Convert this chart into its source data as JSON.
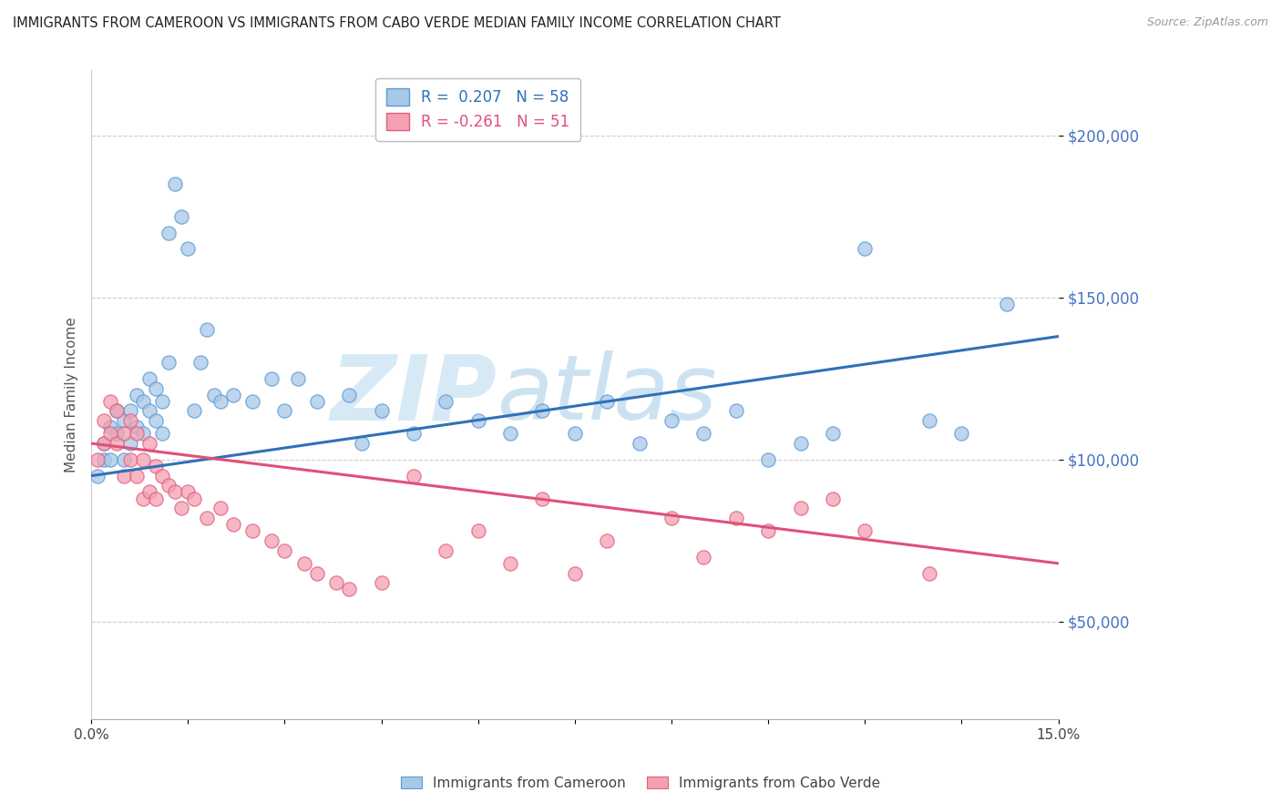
{
  "title": "IMMIGRANTS FROM CAMEROON VS IMMIGRANTS FROM CABO VERDE MEDIAN FAMILY INCOME CORRELATION CHART",
  "source": "Source: ZipAtlas.com",
  "ylabel": "Median Family Income",
  "xlim": [
    0.0,
    0.15
  ],
  "ylim": [
    20000,
    220000
  ],
  "yticks": [
    50000,
    100000,
    150000,
    200000
  ],
  "ytick_labels": [
    "$50,000",
    "$100,000",
    "$150,000",
    "$200,000"
  ],
  "xticks": [
    0.0,
    0.015,
    0.03,
    0.045,
    0.06,
    0.075,
    0.09,
    0.105,
    0.12,
    0.135,
    0.15
  ],
  "xtick_labels": [
    "0.0%",
    "",
    "",
    "",
    "",
    "",
    "",
    "",
    "",
    "",
    "15.0%"
  ],
  "series1_label": "Immigrants from Cameroon",
  "series2_label": "Immigrants from Cabo Verde",
  "series1_r": "0.207",
  "series1_n": "58",
  "series2_r": "-0.261",
  "series2_n": "51",
  "series1_color": "#a8c8e8",
  "series2_color": "#f4a0b0",
  "series1_edge_color": "#5b9bd5",
  "series2_edge_color": "#e06080",
  "series1_line_color": "#3070b8",
  "series2_line_color": "#e0507a",
  "background_color": "#ffffff",
  "grid_color": "#cccccc",
  "ytick_color": "#4472c4",
  "watermark_color": "#cce0f0",
  "series1_line_y0": 95000,
  "series1_line_y1": 138000,
  "series2_line_y0": 105000,
  "series2_line_y1": 68000,
  "series1_x": [
    0.001,
    0.002,
    0.002,
    0.003,
    0.003,
    0.004,
    0.004,
    0.005,
    0.005,
    0.006,
    0.006,
    0.007,
    0.007,
    0.008,
    0.008,
    0.009,
    0.009,
    0.01,
    0.01,
    0.011,
    0.011,
    0.012,
    0.012,
    0.013,
    0.014,
    0.015,
    0.016,
    0.017,
    0.018,
    0.019,
    0.02,
    0.022,
    0.025,
    0.028,
    0.03,
    0.032,
    0.035,
    0.04,
    0.042,
    0.045,
    0.05,
    0.055,
    0.06,
    0.065,
    0.07,
    0.075,
    0.08,
    0.085,
    0.09,
    0.095,
    0.1,
    0.105,
    0.11,
    0.115,
    0.12,
    0.13,
    0.135,
    0.142
  ],
  "series1_y": [
    95000,
    105000,
    100000,
    110000,
    100000,
    108000,
    115000,
    100000,
    112000,
    105000,
    115000,
    110000,
    120000,
    108000,
    118000,
    115000,
    125000,
    112000,
    122000,
    108000,
    118000,
    130000,
    170000,
    185000,
    175000,
    165000,
    115000,
    130000,
    140000,
    120000,
    118000,
    120000,
    118000,
    125000,
    115000,
    125000,
    118000,
    120000,
    105000,
    115000,
    108000,
    118000,
    112000,
    108000,
    115000,
    108000,
    118000,
    105000,
    112000,
    108000,
    115000,
    100000,
    105000,
    108000,
    165000,
    112000,
    108000,
    148000
  ],
  "series2_x": [
    0.001,
    0.002,
    0.002,
    0.003,
    0.003,
    0.004,
    0.004,
    0.005,
    0.005,
    0.006,
    0.006,
    0.007,
    0.007,
    0.008,
    0.008,
    0.009,
    0.009,
    0.01,
    0.01,
    0.011,
    0.012,
    0.013,
    0.014,
    0.015,
    0.016,
    0.018,
    0.02,
    0.022,
    0.025,
    0.028,
    0.03,
    0.033,
    0.035,
    0.038,
    0.04,
    0.045,
    0.05,
    0.055,
    0.06,
    0.065,
    0.07,
    0.075,
    0.08,
    0.09,
    0.095,
    0.1,
    0.105,
    0.11,
    0.115,
    0.12,
    0.13
  ],
  "series2_y": [
    100000,
    112000,
    105000,
    118000,
    108000,
    105000,
    115000,
    95000,
    108000,
    100000,
    112000,
    95000,
    108000,
    88000,
    100000,
    90000,
    105000,
    88000,
    98000,
    95000,
    92000,
    90000,
    85000,
    90000,
    88000,
    82000,
    85000,
    80000,
    78000,
    75000,
    72000,
    68000,
    65000,
    62000,
    60000,
    62000,
    95000,
    72000,
    78000,
    68000,
    88000,
    65000,
    75000,
    82000,
    70000,
    82000,
    78000,
    85000,
    88000,
    78000,
    65000
  ]
}
